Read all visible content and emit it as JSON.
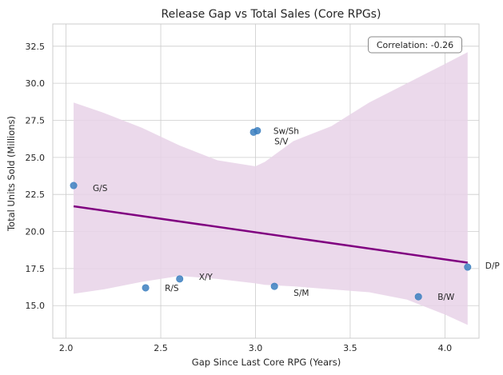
{
  "chart_data": {
    "type": "scatter",
    "title": "Release Gap vs Total Sales (Core RPGs)",
    "xlabel": "Gap Since Last Core RPG (Years)",
    "ylabel": "Total Units Sold (Millions)",
    "xlim": [
      1.93,
      4.18
    ],
    "ylim": [
      12.8,
      34.0
    ],
    "xticks": [
      2.0,
      2.5,
      3.0,
      3.5,
      4.0
    ],
    "xtick_labels": [
      "2.0",
      "2.5",
      "3.0",
      "3.5",
      "4.0"
    ],
    "yticks": [
      15.0,
      17.5,
      20.0,
      22.5,
      25.0,
      27.5,
      30.0,
      32.5
    ],
    "ytick_labels": [
      "15.0",
      "17.5",
      "20.0",
      "22.5",
      "25.0",
      "27.5",
      "30.0",
      "32.5"
    ],
    "grid": true,
    "points": [
      {
        "label": "G/S",
        "x": 2.04,
        "y": 23.1
      },
      {
        "label": "R/S",
        "x": 2.42,
        "y": 16.2
      },
      {
        "label": "X/Y",
        "x": 2.6,
        "y": 16.8
      },
      {
        "label": "Sw/Sh",
        "x": 3.01,
        "y": 26.8
      },
      {
        "label": "S/V",
        "x": 2.99,
        "y": 26.7
      },
      {
        "label": "S/M",
        "x": 3.1,
        "y": 16.3
      },
      {
        "label": "B/W",
        "x": 3.86,
        "y": 15.6
      },
      {
        "label": "D/P",
        "x": 4.12,
        "y": 17.6
      }
    ],
    "regression": {
      "x": [
        2.04,
        4.12
      ],
      "y": [
        21.7,
        17.9
      ]
    },
    "confidence_band": {
      "x": [
        2.04,
        2.2,
        2.4,
        2.6,
        2.8,
        3.0,
        3.05,
        3.2,
        3.4,
        3.6,
        3.8,
        4.0,
        4.12
      ],
      "upper": [
        28.7,
        28.0,
        27.0,
        25.8,
        24.8,
        24.4,
        24.7,
        26.1,
        27.1,
        28.7,
        30.0,
        31.3,
        32.1
      ],
      "lower": [
        15.8,
        16.1,
        16.6,
        17.0,
        16.8,
        16.5,
        16.4,
        16.3,
        16.1,
        15.9,
        15.4,
        14.4,
        13.7
      ]
    },
    "annotation": "Correlation: -0.26",
    "colors": {
      "points": "#3c7fbf",
      "regression": "#800080",
      "band": "#e8d2e8"
    }
  }
}
